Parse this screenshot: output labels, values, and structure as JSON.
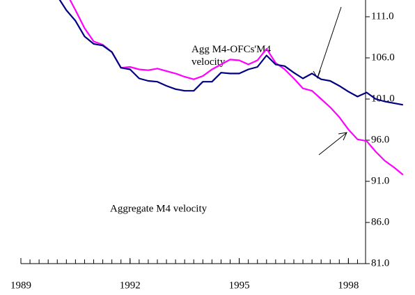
{
  "chart_data": {
    "type": "line",
    "x": [
      1990.0,
      1990.25,
      1990.5,
      1990.75,
      1991.0,
      1991.25,
      1991.5,
      1991.75,
      1992.0,
      1992.25,
      1992.5,
      1992.75,
      1993.0,
      1993.25,
      1993.5,
      1993.75,
      1994.0,
      1994.25,
      1994.5,
      1994.75,
      1995.0,
      1995.25,
      1995.5,
      1995.75,
      1996.0,
      1996.25,
      1996.5,
      1996.75,
      1997.0,
      1997.25,
      1997.5,
      1997.75,
      1998.0,
      1998.25,
      1998.5,
      1998.75,
      1999.0,
      1999.25,
      1999.5
    ],
    "series": [
      {
        "name": "Agg M4-OFCs'M4 velocity",
        "color": "#000080",
        "values": [
          113.5,
          111.8,
          110.5,
          108.6,
          107.7,
          107.5,
          106.7,
          104.8,
          104.6,
          103.5,
          103.2,
          103.1,
          102.6,
          102.2,
          102.0,
          102.0,
          103.1,
          103.1,
          104.2,
          104.1,
          104.1,
          104.6,
          104.9,
          106.3,
          105.2,
          105.0,
          104.2,
          103.5,
          104.1,
          103.4,
          103.2,
          102.6,
          101.9,
          101.3,
          101.8,
          101.0,
          100.7,
          100.5,
          100.3
        ]
      },
      {
        "name": "Aggregate M4 velocity",
        "color": "#ff00ff",
        "values": [
          null,
          113.9,
          111.8,
          109.6,
          108.0,
          107.6,
          106.7,
          104.8,
          104.9,
          104.6,
          104.5,
          104.7,
          104.4,
          104.1,
          103.7,
          103.4,
          103.8,
          104.6,
          105.2,
          105.8,
          105.7,
          105.2,
          105.7,
          107.1,
          105.4,
          104.6,
          103.5,
          102.3,
          102.0,
          101.0,
          100.0,
          98.8,
          97.3,
          96.1,
          95.9,
          94.6,
          93.5,
          92.7,
          91.8
        ]
      }
    ],
    "xlim": [
      1989,
      1999.6
    ],
    "xticks": [
      1989,
      1992,
      1995,
      1998
    ],
    "ylim": [
      81,
      113
    ],
    "yticks": [
      {
        "value": 81,
        "label": "81.0"
      },
      {
        "value": 86,
        "label": "86.0"
      },
      {
        "value": 91,
        "label": "91.0"
      },
      {
        "value": 96,
        "label": "96.0"
      },
      {
        "value": 101,
        "label": "101.0"
      },
      {
        "value": 106,
        "label": "106.0"
      },
      {
        "value": 111,
        "label": "111.0"
      }
    ]
  }
}
